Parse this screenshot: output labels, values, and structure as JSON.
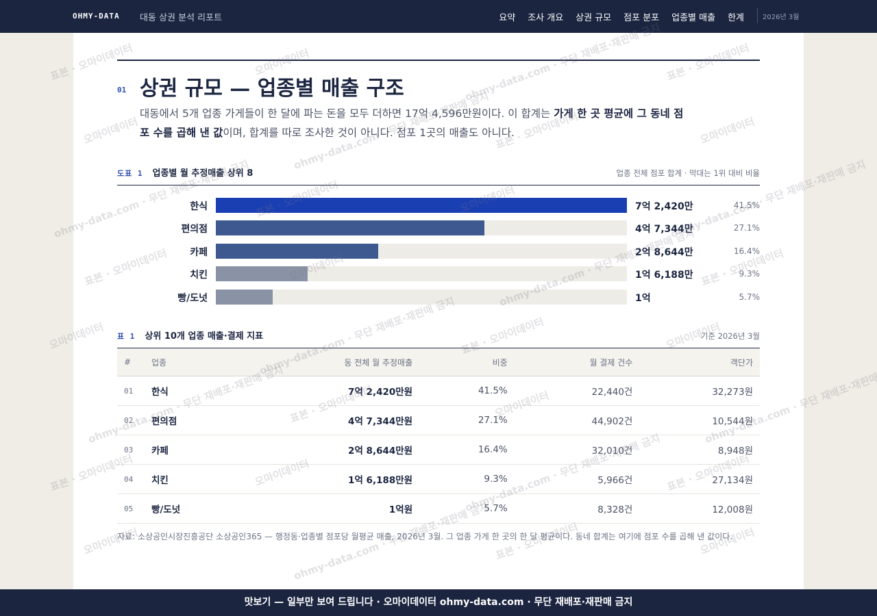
{
  "nav": {
    "brand": "OHMY-DATA",
    "report": "대동 상권 분석 리포트",
    "menu": [
      "요약",
      "조사 개요",
      "상권 규모",
      "점포 분포",
      "업종별 매출",
      "한계"
    ],
    "date": "2026년 3월"
  },
  "section": {
    "number": "01",
    "title": "상권 규모 — 업종별 매출 구조",
    "lead": [
      "대동에서 5개 업종 가게들이 한 달에 파는 돈을 모두 더하면 17억 4,596만원이다. 이 합계는 ",
      "가게 한 곳 평균에 그 동네 점포 수를 곱해 낸 값",
      "이며, 합계를 따로 조사한 것이 아니다. 점포 1곳의 매출도 아니다."
    ]
  },
  "chart_data": {
    "type": "hbar",
    "label": "도표 1",
    "title": "업종별 월 추정매출 상위 8",
    "note": "업종 전체 점포 합계 · 막대는 1위 대비 비율",
    "categories": [
      "한식",
      "편의점",
      "카페",
      "치킨",
      "빵/도넛"
    ],
    "values": [
      72420,
      47344,
      28644,
      16188,
      10000
    ],
    "value_labels": [
      "7억 2,420만",
      "4억 7,344만",
      "2억 8,644만",
      "1억 6,188만",
      "1억"
    ],
    "shares": [
      41.5,
      27.1,
      16.4,
      9.3,
      5.7
    ],
    "share_labels": [
      "41.5%",
      "27.1%",
      "16.4%",
      "9.3%",
      "5.7%"
    ],
    "colors": [
      "#1a3fb3",
      "#3e5890",
      "#3e5890",
      "#8a93a6",
      "#8a93a6"
    ],
    "xlim": [
      0,
      72420
    ]
  },
  "table": {
    "label": "표 1",
    "title": "상위 10개 업종 매출·결제 지표",
    "note": "기준 2026년 3월",
    "columns": [
      "#",
      "업종",
      "동 전체 월 추정매출",
      "비중",
      "월 결제 건수",
      "객단가"
    ],
    "rows": [
      [
        "01",
        "한식",
        "7억 2,420만원",
        "41.5%",
        "22,440건",
        "32,273원"
      ],
      [
        "02",
        "편의점",
        "4억 7,344만원",
        "27.1%",
        "44,902건",
        "10,544원"
      ],
      [
        "03",
        "카페",
        "2억 8,644만원",
        "16.4%",
        "32,010건",
        "8,948원"
      ],
      [
        "04",
        "치킨",
        "1억 6,188만원",
        "9.3%",
        "5,966건",
        "27,134원"
      ],
      [
        "05",
        "빵/도넛",
        "1억원",
        "5.7%",
        "8,328건",
        "12,008원"
      ]
    ]
  },
  "source": "자료: 소상공인시장진흥공단 소상공인365 — 행정동·업종별 점포당 월평균 매출, 2026년 3월. 그 업종 가게 한 곳의 한 달 평균이다. 동네 합계는 여기에 점포 수를 곱해 낸 값이다.",
  "watermarks": [
    "표본 · 오마이데이터",
    "오마이데이터",
    "ohmy-data.com · 무단 재배포·재판매 금지"
  ],
  "footer": "맛보기 — 일부만 보여 드립니다 · 오마이데이터 ohmy-data.com · 무단 재배포·재판매 금지"
}
